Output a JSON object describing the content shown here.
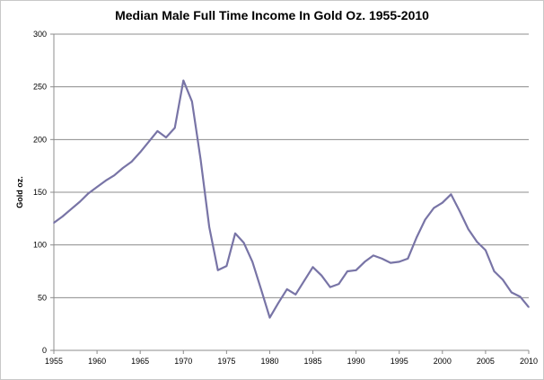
{
  "chart_data": {
    "type": "line",
    "title": "Median Male Full Time Income In Gold Oz. 1955-2010",
    "xlabel": "",
    "ylabel": "Gold oz.",
    "xlim": [
      1955,
      2010
    ],
    "ylim": [
      0,
      300
    ],
    "x_ticks": [
      "1955",
      "1960",
      "1965",
      "1970",
      "1975",
      "1980",
      "1985",
      "1990",
      "1995",
      "2000",
      "2005",
      "2010"
    ],
    "y_ticks": [
      "0",
      "50",
      "100",
      "150",
      "200",
      "250",
      "300"
    ],
    "grid": "horizontal",
    "legend": "none",
    "series_color": "#7874a6",
    "series": [
      {
        "x": [
          1955,
          1956,
          1957,
          1958,
          1959,
          1960,
          1961,
          1962,
          1963,
          1964,
          1965,
          1966,
          1967,
          1968,
          1969,
          1970,
          1971,
          1972,
          1973,
          1974,
          1975,
          1976,
          1977,
          1978,
          1979,
          1980,
          1981,
          1982,
          1983,
          1984,
          1985,
          1986,
          1987,
          1988,
          1989,
          1990,
          1991,
          1992,
          1993,
          1994,
          1995,
          1996,
          1997,
          1998,
          1999,
          2000,
          2001,
          2002,
          2003,
          2004,
          2005,
          2006,
          2007,
          2008,
          2009,
          2010
        ],
        "values": [
          121,
          127,
          134,
          141,
          149,
          155,
          161,
          166,
          173,
          179,
          188,
          198,
          208,
          202,
          211,
          256,
          236,
          181,
          117,
          76,
          80,
          111,
          102,
          84,
          58,
          31,
          45,
          58,
          53,
          66,
          79,
          71,
          60,
          63,
          75,
          76,
          84,
          90,
          87,
          83,
          84,
          87,
          107,
          124,
          135,
          140,
          148,
          132,
          115,
          103,
          95,
          75,
          67,
          55,
          51,
          41
        ]
      }
    ]
  }
}
